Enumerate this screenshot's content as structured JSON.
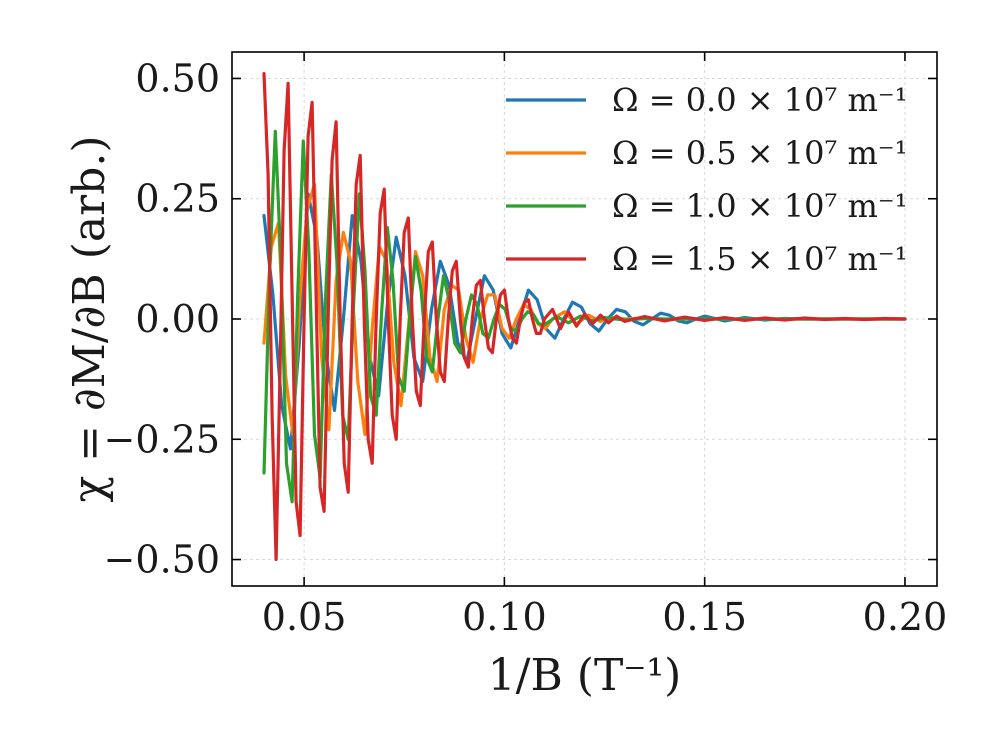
{
  "chart_data": {
    "type": "line",
    "xlabel": "1/B (T⁻¹)",
    "ylabel": "χ = ∂M/∂B (arb.)",
    "xlim": [
      0.032,
      0.208
    ],
    "ylim": [
      -0.555,
      0.555
    ],
    "xticks": [
      0.05,
      0.1,
      0.15,
      0.2
    ],
    "xtick_labels": [
      "0.05",
      "0.10",
      "0.15",
      "0.20"
    ],
    "yticks": [
      -0.5,
      -0.25,
      0.0,
      0.25,
      0.5
    ],
    "ytick_labels": [
      "−0.50",
      "−0.25",
      "0.00",
      "0.25",
      "0.50"
    ],
    "grid": true,
    "legend_position": "top-right",
    "series": [
      {
        "name": "Ω = 0.0 × 10⁷ m⁻¹",
        "color": "#1f77b4",
        "x": [
          0.04,
          0.0422,
          0.0444,
          0.0466,
          0.0488,
          0.051,
          0.0532,
          0.0554,
          0.0576,
          0.0598,
          0.062,
          0.0642,
          0.0664,
          0.0686,
          0.0708,
          0.073,
          0.0752,
          0.0774,
          0.0796,
          0.0818,
          0.084,
          0.0862,
          0.0884,
          0.0906,
          0.0928,
          0.095,
          0.0972,
          0.0994,
          0.1016,
          0.1038,
          0.106,
          0.1082,
          0.1104,
          0.1126,
          0.1148,
          0.117,
          0.1192,
          0.1214,
          0.1236,
          0.1258,
          0.128,
          0.1302,
          0.1324,
          0.1346,
          0.1368,
          0.139,
          0.1412,
          0.1434,
          0.1456,
          0.1478,
          0.15,
          0.155,
          0.16,
          0.165,
          0.17,
          0.175,
          0.18,
          0.185,
          0.19,
          0.195,
          0.2
        ],
        "y": [
          0.215,
          0.05,
          -0.18,
          -0.27,
          -0.05,
          0.26,
          0.17,
          -0.07,
          -0.19,
          0.0,
          0.215,
          0.12,
          -0.08,
          -0.16,
          0.03,
          0.17,
          0.09,
          -0.08,
          -0.13,
          0.02,
          0.12,
          0.07,
          -0.05,
          -0.09,
          0.0,
          0.09,
          0.06,
          -0.03,
          -0.06,
          0.0,
          0.06,
          0.04,
          -0.02,
          -0.04,
          0.0,
          0.035,
          0.025,
          -0.01,
          -0.025,
          0.0,
          0.02,
          0.015,
          -0.005,
          -0.012,
          0.0,
          0.012,
          0.008,
          -0.004,
          -0.008,
          0.0,
          0.006,
          -0.004,
          0.003,
          -0.002,
          0.001,
          0.0,
          0.0,
          0.0,
          0.0,
          0.0,
          0.0
        ]
      },
      {
        "name": "Ω = 0.5 × 10⁷ m⁻¹",
        "color": "#ff7f0e",
        "x": [
          0.04,
          0.0418,
          0.0436,
          0.0454,
          0.0472,
          0.049,
          0.0508,
          0.0526,
          0.0544,
          0.0562,
          0.058,
          0.0598,
          0.0616,
          0.0634,
          0.0652,
          0.067,
          0.0688,
          0.0706,
          0.0724,
          0.0742,
          0.076,
          0.0778,
          0.0796,
          0.0814,
          0.0832,
          0.085,
          0.0868,
          0.0886,
          0.0904,
          0.0922,
          0.094,
          0.0958,
          0.0976,
          0.0994,
          0.1012,
          0.103,
          0.1048,
          0.1066,
          0.1084,
          0.1102,
          0.112,
          0.115,
          0.118,
          0.121,
          0.124,
          0.127,
          0.13,
          0.135,
          0.14,
          0.145,
          0.15,
          0.16,
          0.17,
          0.18,
          0.19,
          0.2
        ],
        "y": [
          -0.05,
          0.15,
          0.2,
          -0.12,
          -0.24,
          0.05,
          0.23,
          0.28,
          -0.08,
          -0.23,
          0.08,
          0.18,
          0.12,
          -0.13,
          -0.24,
          -0.02,
          0.15,
          0.12,
          -0.09,
          -0.18,
          -0.02,
          0.14,
          0.09,
          -0.08,
          -0.13,
          0.02,
          0.07,
          0.06,
          -0.04,
          -0.09,
          0.0,
          0.05,
          0.05,
          -0.02,
          -0.04,
          0.0,
          0.03,
          0.02,
          -0.01,
          -0.02,
          0.0,
          0.015,
          -0.01,
          0.008,
          -0.005,
          0.003,
          0.0,
          0.002,
          -0.001,
          0.0,
          0.0,
          0.0,
          0.0,
          0.0,
          0.0,
          0.0
        ]
      },
      {
        "name": "Ω = 1.0 × 10⁷ m⁻¹",
        "color": "#2ca02c",
        "x": [
          0.04,
          0.0414,
          0.0428,
          0.0442,
          0.0456,
          0.047,
          0.0484,
          0.0498,
          0.0512,
          0.0526,
          0.054,
          0.0554,
          0.0568,
          0.0582,
          0.0596,
          0.061,
          0.0624,
          0.0638,
          0.0652,
          0.0666,
          0.068,
          0.0694,
          0.0708,
          0.0722,
          0.0736,
          0.075,
          0.0764,
          0.0778,
          0.0792,
          0.0806,
          0.082,
          0.0834,
          0.0848,
          0.0862,
          0.0876,
          0.089,
          0.0904,
          0.0918,
          0.0932,
          0.0946,
          0.096,
          0.0974,
          0.0988,
          0.1002,
          0.1016,
          0.103,
          0.1044,
          0.1058,
          0.1072,
          0.1086,
          0.11,
          0.113,
          0.116,
          0.119,
          0.122,
          0.125,
          0.13,
          0.135,
          0.14,
          0.145,
          0.15,
          0.16,
          0.17,
          0.18,
          0.19,
          0.2
        ],
        "y": [
          -0.32,
          0.1,
          0.39,
          0.12,
          -0.3,
          -0.38,
          0.05,
          0.37,
          0.14,
          -0.24,
          -0.33,
          0.05,
          0.3,
          0.12,
          -0.2,
          -0.25,
          0.04,
          0.26,
          0.1,
          -0.16,
          -0.2,
          0.02,
          0.19,
          0.08,
          -0.12,
          -0.15,
          0.01,
          0.13,
          0.06,
          -0.08,
          -0.11,
          0.0,
          0.09,
          0.04,
          -0.05,
          -0.07,
          0.0,
          0.05,
          0.03,
          -0.03,
          -0.04,
          0.0,
          0.03,
          0.02,
          -0.02,
          -0.025,
          0.0,
          0.015,
          0.01,
          -0.01,
          -0.012,
          0.005,
          -0.008,
          0.006,
          -0.004,
          0.003,
          -0.002,
          0.001,
          0.0,
          0.0,
          0.0,
          0.0,
          0.0,
          0.0,
          0.0,
          0.0
        ]
      },
      {
        "name": "Ω = 1.5 × 10⁷ m⁻¹",
        "color": "#d62728",
        "x": [
          0.04,
          0.041,
          0.042,
          0.043,
          0.044,
          0.045,
          0.046,
          0.047,
          0.048,
          0.049,
          0.05,
          0.051,
          0.052,
          0.053,
          0.054,
          0.055,
          0.056,
          0.057,
          0.058,
          0.059,
          0.06,
          0.061,
          0.062,
          0.063,
          0.064,
          0.065,
          0.066,
          0.067,
          0.068,
          0.069,
          0.07,
          0.071,
          0.072,
          0.073,
          0.074,
          0.075,
          0.076,
          0.077,
          0.078,
          0.079,
          0.08,
          0.081,
          0.082,
          0.083,
          0.084,
          0.085,
          0.086,
          0.087,
          0.088,
          0.089,
          0.09,
          0.091,
          0.092,
          0.093,
          0.094,
          0.095,
          0.096,
          0.097,
          0.098,
          0.099,
          0.1,
          0.101,
          0.102,
          0.103,
          0.104,
          0.105,
          0.106,
          0.107,
          0.108,
          0.109,
          0.11,
          0.112,
          0.114,
          0.116,
          0.118,
          0.12,
          0.122,
          0.124,
          0.126,
          0.128,
          0.13,
          0.135,
          0.14,
          0.145,
          0.15,
          0.155,
          0.16,
          0.165,
          0.17,
          0.175,
          0.18,
          0.185,
          0.19,
          0.195,
          0.2
        ],
        "y": [
          0.51,
          0.3,
          -0.2,
          -0.5,
          -0.1,
          0.35,
          0.49,
          0.05,
          -0.38,
          -0.45,
          0.0,
          0.38,
          0.45,
          0.05,
          -0.35,
          -0.4,
          0.0,
          0.33,
          0.41,
          0.0,
          -0.3,
          -0.36,
          0.0,
          0.28,
          0.34,
          0.0,
          -0.25,
          -0.3,
          0.0,
          0.22,
          0.27,
          0.0,
          -0.2,
          -0.25,
          0.0,
          0.18,
          0.21,
          0.0,
          -0.15,
          -0.18,
          0.0,
          0.14,
          0.16,
          0.0,
          -0.11,
          -0.13,
          0.0,
          0.1,
          0.12,
          0.0,
          -0.08,
          -0.1,
          0.0,
          0.07,
          0.08,
          0.0,
          -0.06,
          -0.07,
          0.0,
          0.05,
          0.06,
          0.0,
          -0.04,
          -0.05,
          0.0,
          0.035,
          0.04,
          0.0,
          -0.03,
          -0.03,
          0.0,
          0.02,
          -0.02,
          0.015,
          -0.015,
          0.01,
          -0.01,
          0.008,
          -0.008,
          0.006,
          -0.005,
          0.005,
          -0.004,
          0.004,
          -0.003,
          0.003,
          -0.003,
          0.002,
          -0.002,
          0.002,
          -0.001,
          0.001,
          -0.001,
          0.001,
          0.0
        ]
      }
    ]
  }
}
